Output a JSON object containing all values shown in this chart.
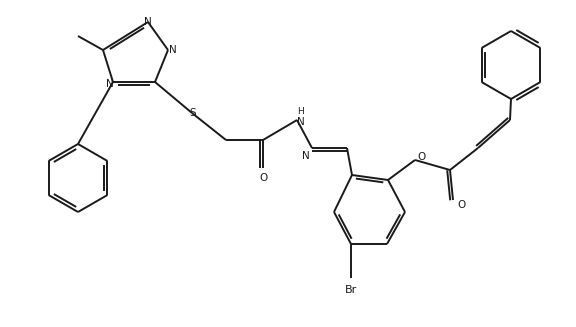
{
  "bg_color": "#ffffff",
  "line_color": "#1a1a1a",
  "line_width": 1.4,
  "figsize": [
    5.76,
    3.27
  ],
  "dpi": 100,
  "xlim": [
    0,
    576
  ],
  "ylim": [
    0,
    327
  ]
}
